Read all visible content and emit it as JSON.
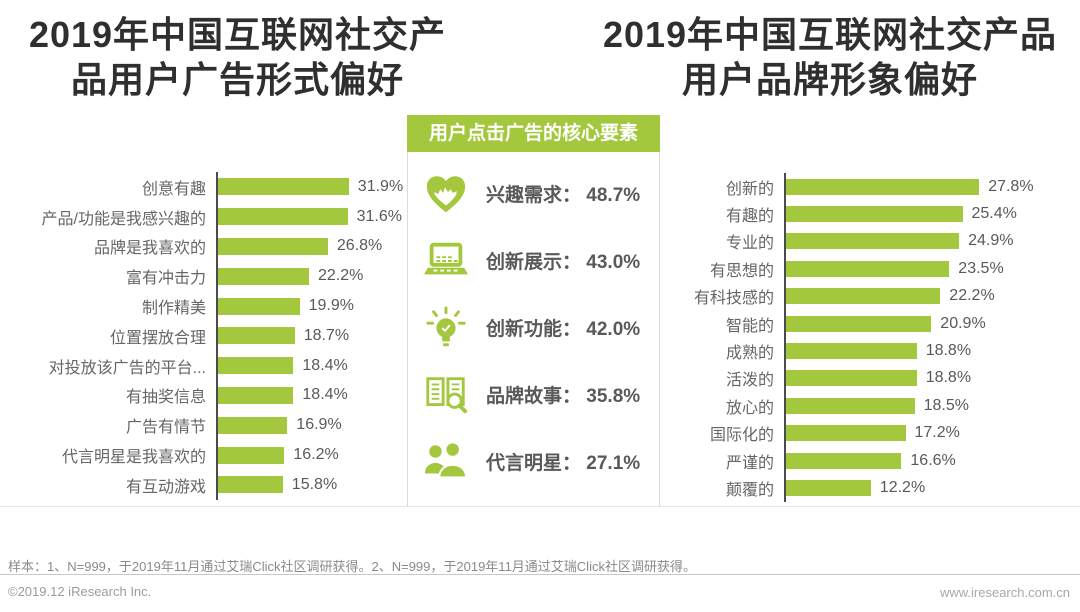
{
  "colors": {
    "bar_green": "#a4c83d",
    "title_text": "#2f2f2f",
    "label_text": "#666666",
    "value_text": "#595959"
  },
  "titles": {
    "left_lines": [
      "2019年中国互联网社交产",
      "品用户广告形式偏好"
    ],
    "right_lines": [
      "2019年中国互联网社交产品",
      "用户品牌形象偏好"
    ]
  },
  "center_panel": {
    "header": "用户点击广告的核心要素",
    "items": [
      {
        "icon": "heart-icon",
        "text": "兴趣需求： 48.7%"
      },
      {
        "icon": "laptop-icon",
        "text": "创新展示： 43.0%"
      },
      {
        "icon": "lightbulb-icon",
        "text": "创新功能： 42.0%"
      },
      {
        "icon": "brochure-icon",
        "text": "品牌故事： 35.8%"
      },
      {
        "icon": "people-icon",
        "text": "代言明星： 27.1%"
      }
    ]
  },
  "chart_data": [
    {
      "id": "ad_format_preference",
      "type": "bar",
      "orientation": "horizontal",
      "title": "2019年中国互联网社交产品用户广告形式偏好",
      "unit": "%",
      "xlim": [
        0,
        35
      ],
      "categories": [
        "创意有趣",
        "产品/功能是我感兴趣的",
        "品牌是我喜欢的",
        "富有冲击力",
        "制作精美",
        "位置摆放合理",
        "对投放该广告的平台...",
        "有抽奖信息",
        "广告有情节",
        "代言明星是我喜欢的",
        "有互动游戏"
      ],
      "values": [
        31.9,
        31.6,
        26.8,
        22.2,
        19.9,
        18.7,
        18.4,
        18.4,
        16.9,
        16.2,
        15.8
      ]
    },
    {
      "id": "brand_image_preference",
      "type": "bar",
      "orientation": "horizontal",
      "title": "2019年中国互联网社交产品用户品牌形象偏好",
      "unit": "%",
      "xlim": [
        0,
        30
      ],
      "categories": [
        "创新的",
        "有趣的",
        "专业的",
        "有思想的",
        "有科技感的",
        "智能的",
        "成熟的",
        "活泼的",
        "放心的",
        "国际化的",
        "严谨的",
        "颠覆的"
      ],
      "values": [
        27.8,
        25.4,
        24.9,
        23.5,
        22.2,
        20.9,
        18.8,
        18.8,
        18.5,
        17.2,
        16.6,
        12.2
      ]
    },
    {
      "id": "click_core_factors",
      "type": "list",
      "title": "用户点击广告的核心要素",
      "unit": "%",
      "categories": [
        "兴趣需求",
        "创新展示",
        "创新功能",
        "品牌故事",
        "代言明星"
      ],
      "values": [
        48.7,
        43.0,
        42.0,
        35.8,
        27.1
      ]
    }
  ],
  "footer": {
    "note": "样本：1、N=999，于2019年11月通过艾瑞Click社区调研获得。2、N=999，于2019年11月通过艾瑞Click社区调研获得。",
    "copyright": "©2019.12 iResearch Inc.",
    "website": "www.iresearch.com.cn"
  }
}
